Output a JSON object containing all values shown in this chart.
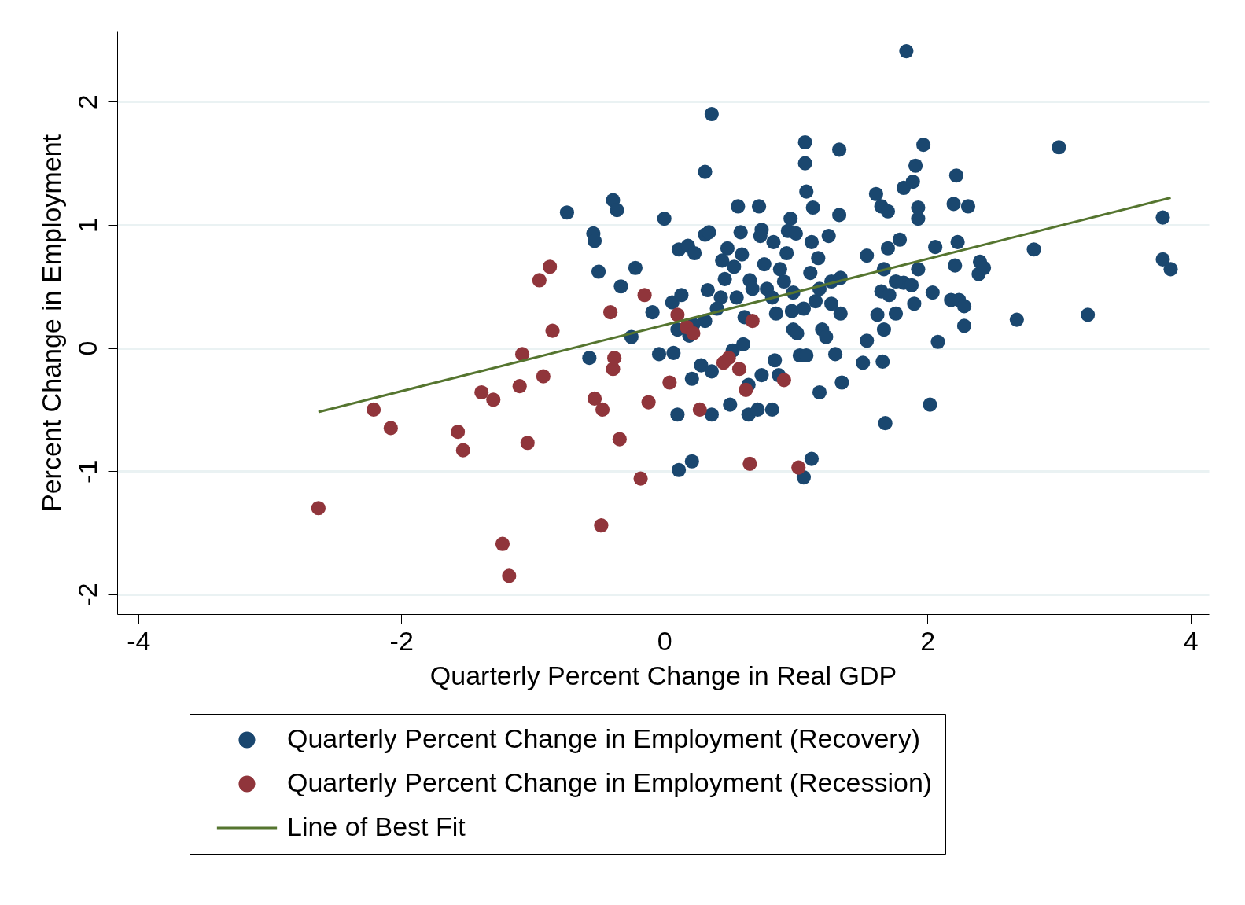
{
  "chart_data": {
    "type": "scatter",
    "xlabel": "Quarterly Percent Change in Real GDP",
    "ylabel": "Percent Change in Employment",
    "xlim": [
      -4.16,
      4.14
    ],
    "ylim": [
      -2.16,
      2.57
    ],
    "xticks": [
      -4,
      -2,
      0,
      2,
      4
    ],
    "yticks": [
      -2,
      -1,
      0,
      1,
      2
    ],
    "grid": "y",
    "legend": "bottom",
    "marker": "circle",
    "series": [
      {
        "name": "Quarterly Percent Change in Employment (Recovery)",
        "color": "#1a476f",
        "x": [
          -0.74,
          -0.54,
          -0.53,
          -0.5,
          -0.39,
          -0.36,
          -0.33,
          -0.25,
          -0.22,
          -0.57,
          -0.09,
          -0.04,
          0.0,
          0.06,
          0.07,
          0.1,
          0.11,
          0.11,
          0.13,
          0.1,
          0.18,
          0.19,
          0.21,
          0.21,
          0.23,
          0.28,
          0.31,
          0.31,
          0.33,
          0.34,
          0.36,
          0.36,
          0.36,
          0.44,
          0.46,
          0.48,
          0.5,
          0.52,
          0.53,
          0.56,
          0.58,
          0.6,
          0.59,
          0.64,
          0.64,
          0.65,
          0.71,
          0.72,
          0.74,
          0.73,
          0.74,
          0.76,
          0.78,
          0.82,
          0.83,
          0.84,
          0.87,
          0.88,
          0.93,
          0.94,
          0.96,
          0.97,
          0.98,
          1.0,
          1.01,
          1.03,
          1.06,
          1.08,
          1.07,
          1.07,
          1.08,
          1.12,
          1.12,
          1.11,
          1.13,
          1.15,
          1.17,
          1.18,
          1.2,
          1.23,
          1.25,
          1.27,
          1.3,
          1.33,
          1.33,
          1.34,
          1.35,
          1.34,
          1.51,
          1.54,
          1.54,
          1.61,
          1.62,
          1.65,
          1.65,
          1.66,
          1.68,
          1.7,
          1.7,
          1.71,
          1.76,
          1.79,
          1.82,
          1.84,
          1.82,
          1.9,
          1.89,
          1.91,
          1.93,
          1.93,
          1.93,
          1.97,
          2.04,
          2.02,
          2.06,
          2.08,
          2.18,
          2.2,
          2.21,
          2.22,
          2.23,
          2.24,
          2.28,
          2.28,
          2.31,
          2.39,
          2.4,
          2.43,
          2.68,
          2.81,
          3.0,
          3.22,
          3.79,
          3.79,
          3.85,
          0.22,
          0.31,
          0.4,
          0.43,
          0.55,
          0.61,
          0.67,
          0.82,
          0.85,
          0.91,
          0.98,
          1.06,
          1.18,
          1.27,
          1.67,
          1.76,
          1.88,
          1.67
        ],
        "values": [
          1.1,
          0.93,
          0.87,
          0.62,
          1.2,
          1.12,
          0.5,
          0.09,
          0.65,
          -0.08,
          0.29,
          -0.05,
          1.05,
          0.37,
          -0.04,
          -0.54,
          -0.99,
          0.8,
          0.43,
          0.15,
          0.83,
          0.1,
          -0.25,
          -0.92,
          0.77,
          -0.14,
          0.92,
          1.43,
          0.47,
          0.94,
          1.9,
          -0.19,
          -0.54,
          0.71,
          0.56,
          0.81,
          -0.46,
          -0.02,
          0.66,
          1.15,
          0.94,
          0.03,
          0.76,
          -0.3,
          -0.54,
          0.55,
          -0.5,
          1.15,
          0.96,
          0.91,
          -0.22,
          0.68,
          0.48,
          -0.5,
          0.86,
          -0.1,
          -0.22,
          0.64,
          0.77,
          0.95,
          1.05,
          0.3,
          0.15,
          0.93,
          0.12,
          -0.06,
          -1.05,
          -0.06,
          1.67,
          1.5,
          1.27,
          -0.9,
          0.86,
          0.61,
          1.14,
          0.38,
          0.73,
          -0.36,
          0.15,
          0.09,
          0.91,
          0.54,
          -0.05,
          1.61,
          1.08,
          0.28,
          -0.28,
          0.57,
          -0.12,
          0.75,
          0.06,
          1.25,
          0.27,
          0.46,
          1.15,
          -0.11,
          -0.61,
          0.81,
          1.11,
          0.43,
          0.28,
          0.88,
          0.53,
          2.41,
          1.3,
          0.36,
          1.35,
          1.48,
          1.14,
          1.05,
          0.64,
          1.65,
          0.45,
          -0.46,
          0.82,
          0.05,
          0.39,
          1.17,
          0.67,
          1.4,
          0.86,
          0.39,
          0.34,
          0.18,
          1.15,
          0.6,
          0.7,
          0.65,
          0.23,
          0.8,
          1.63,
          0.27,
          1.06,
          0.72,
          0.64,
          0.19,
          0.22,
          0.32,
          0.41,
          0.41,
          0.25,
          0.48,
          0.41,
          0.28,
          0.54,
          0.45,
          0.32,
          0.48,
          0.36,
          0.64,
          0.54,
          0.51,
          0.15
        ]
      },
      {
        "name": "Quarterly Percent Change in Employment (Recession)",
        "color": "#90353b",
        "x": [
          -2.63,
          -2.21,
          -2.08,
          -1.57,
          -1.53,
          -1.39,
          -1.3,
          -1.23,
          -1.18,
          -1.1,
          -1.08,
          -1.04,
          -0.95,
          -0.92,
          -0.87,
          -0.85,
          -0.53,
          -0.48,
          -0.47,
          -0.41,
          -0.39,
          -0.38,
          -0.34,
          -0.18,
          -0.15,
          -0.12,
          0.04,
          0.1,
          0.17,
          0.22,
          0.27,
          0.45,
          0.49,
          0.57,
          0.62,
          0.65,
          0.67,
          0.91,
          1.02
        ],
        "values": [
          -1.3,
          -0.5,
          -0.65,
          -0.68,
          -0.83,
          -0.36,
          -0.42,
          -1.59,
          -1.85,
          -0.31,
          -0.05,
          -0.77,
          0.55,
          -0.23,
          0.66,
          0.14,
          -0.41,
          -1.44,
          -0.5,
          0.29,
          -0.17,
          -0.08,
          -0.74,
          -1.06,
          0.43,
          -0.44,
          -0.28,
          0.27,
          0.17,
          0.12,
          -0.5,
          -0.12,
          -0.08,
          -0.17,
          -0.34,
          -0.94,
          0.22,
          -0.26,
          -0.97
        ]
      },
      {
        "name": "Line of Best Fit",
        "color": "#55752f",
        "type": "line",
        "marker": "none",
        "x": [
          -2.63,
          3.85
        ],
        "values": [
          -0.52,
          1.22
        ]
      }
    ]
  }
}
